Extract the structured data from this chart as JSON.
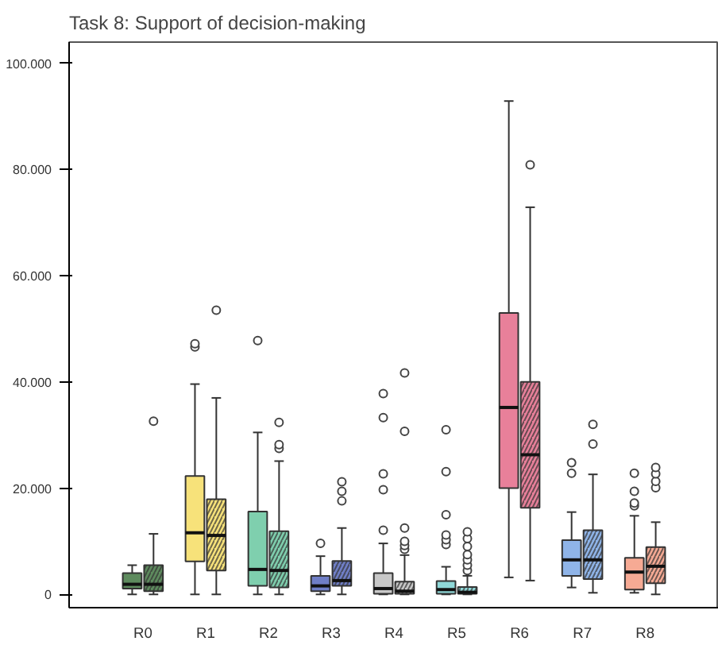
{
  "chart_data": {
    "type": "box",
    "title": "Task 8: Support of decision-making",
    "categories": [
      "R0",
      "R1",
      "R2",
      "R3",
      "R4",
      "R5",
      "R6",
      "R7",
      "R8"
    ],
    "ylim": [
      -2500,
      104000
    ],
    "yticks": [
      {
        "value": 0,
        "label": "0"
      },
      {
        "value": 20000,
        "label": "20.000"
      },
      {
        "value": 40000,
        "label": "40.000"
      },
      {
        "value": 60000,
        "label": "60.000"
      },
      {
        "value": 80000,
        "label": "80.000"
      },
      {
        "value": 100000,
        "label": "100.000"
      }
    ],
    "grid": false,
    "series": [
      {
        "colors": [
          "#5e8b5e",
          "#f7e27a",
          "#7fcfae",
          "#6f7ec6",
          "#c8c8c8",
          "#8fd8d8",
          "#e8809a",
          "#8fb4e8",
          "#f6aa94"
        ],
        "boxes": [
          {
            "low": 0,
            "q1": 1100,
            "median": 1900,
            "q3": 4000,
            "high": 5500
          },
          {
            "low": 0,
            "q1": 6200,
            "median": 11600,
            "q3": 22300,
            "high": 39600,
            "outliers": [
              46600,
              47200
            ]
          },
          {
            "low": 0,
            "q1": 1600,
            "median": 4700,
            "q3": 15600,
            "high": 30500,
            "outliers": [
              47800
            ]
          },
          {
            "low": 0,
            "q1": 600,
            "median": 1600,
            "q3": 3500,
            "high": 7200,
            "outliers": [
              9600
            ]
          },
          {
            "low": 0,
            "q1": 100,
            "median": 1100,
            "q3": 4000,
            "high": 9600,
            "outliers": [
              12100,
              19700,
              22700,
              33300,
              37800
            ]
          },
          {
            "low": 0,
            "q1": 100,
            "median": 900,
            "q3": 2500,
            "high": 5200,
            "outliers": [
              9400,
              10300,
              11200,
              15000,
              23100,
              31000
            ]
          },
          {
            "low": 3200,
            "q1": 20000,
            "median": 35200,
            "q3": 53000,
            "high": 92900
          },
          {
            "low": 1300,
            "q1": 3500,
            "median": 6500,
            "q3": 10200,
            "high": 15500,
            "outliers": [
              22800,
              24800
            ]
          },
          {
            "low": 300,
            "q1": 900,
            "median": 4200,
            "q3": 6900,
            "high": 14800,
            "outliers": [
              16700,
              17200,
              19400,
              22800
            ]
          }
        ]
      },
      {
        "colors": [
          "#5e8b5e",
          "#f7e27a",
          "#7fcfae",
          "#6f7ec6",
          "#c8c8c8",
          "#8fd8d8",
          "#e8809a",
          "#8fb4e8",
          "#f6aa94"
        ],
        "boxes": [
          {
            "low": 0,
            "q1": 600,
            "median": 1900,
            "q3": 5500,
            "high": 11400,
            "outliers": [
              32600
            ]
          },
          {
            "low": 0,
            "q1": 4500,
            "median": 11100,
            "q3": 17900,
            "high": 37000,
            "outliers": [
              53500
            ]
          },
          {
            "low": 0,
            "q1": 1300,
            "median": 4500,
            "q3": 11900,
            "high": 25100,
            "outliers": [
              27500,
              28200,
              32400
            ]
          },
          {
            "low": 0,
            "q1": 1600,
            "median": 2600,
            "q3": 6300,
            "high": 12500,
            "outliers": [
              17600,
              19400,
              21200
            ]
          },
          {
            "low": 0,
            "q1": 100,
            "median": 600,
            "q3": 2400,
            "high": 7400,
            "outliers": [
              8500,
              9200,
              10000,
              12500,
              30700,
              41700
            ]
          },
          {
            "low": 0,
            "q1": 100,
            "median": 400,
            "q3": 1400,
            "high": 3500,
            "outliers": [
              4500,
              5500,
              6500,
              7500,
              9000,
              10500,
              11800
            ]
          },
          {
            "low": 2600,
            "q1": 16300,
            "median": 26300,
            "q3": 40000,
            "high": 72900,
            "outliers": [
              80900
            ]
          },
          {
            "low": 300,
            "q1": 2900,
            "median": 6500,
            "q3": 12100,
            "high": 22600,
            "outliers": [
              28300,
              32000
            ]
          },
          {
            "low": 0,
            "q1": 2100,
            "median": 5300,
            "q3": 8900,
            "high": 13600,
            "outliers": [
              20100,
              21300,
              22700,
              23900
            ]
          }
        ]
      }
    ]
  }
}
